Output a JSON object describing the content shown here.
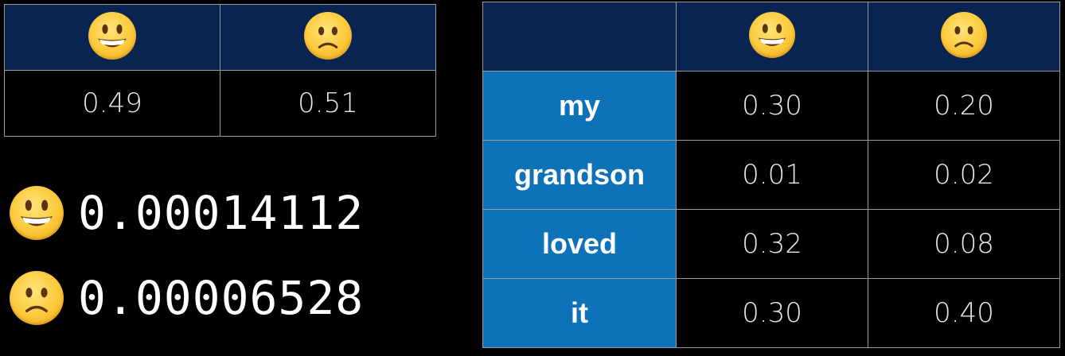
{
  "prior_table": {
    "header_icons": [
      "grinning-face-icon",
      "slightly-frowning-face-icon"
    ],
    "values": [
      "0.49",
      "0.51"
    ]
  },
  "results": [
    {
      "icon": "grinning-face-icon",
      "value": "0.00014112"
    },
    {
      "icon": "slightly-frowning-face-icon",
      "value": "0.00006528"
    }
  ],
  "likelihood_table": {
    "header_icons": [
      "grinning-face-icon",
      "slightly-frowning-face-icon"
    ],
    "rows": [
      {
        "word": "my",
        "happy": "0.30",
        "sad": "0.20"
      },
      {
        "word": "grandson",
        "happy": "0.01",
        "sad": "0.02"
      },
      {
        "word": "loved",
        "happy": "0.32",
        "sad": "0.08"
      },
      {
        "word": "it",
        "happy": "0.30",
        "sad": "0.40"
      }
    ]
  },
  "colors": {
    "header_bg": "#0a2452",
    "word_bg": "#0e72b8",
    "emoji_yellow": "#fcc93a"
  }
}
